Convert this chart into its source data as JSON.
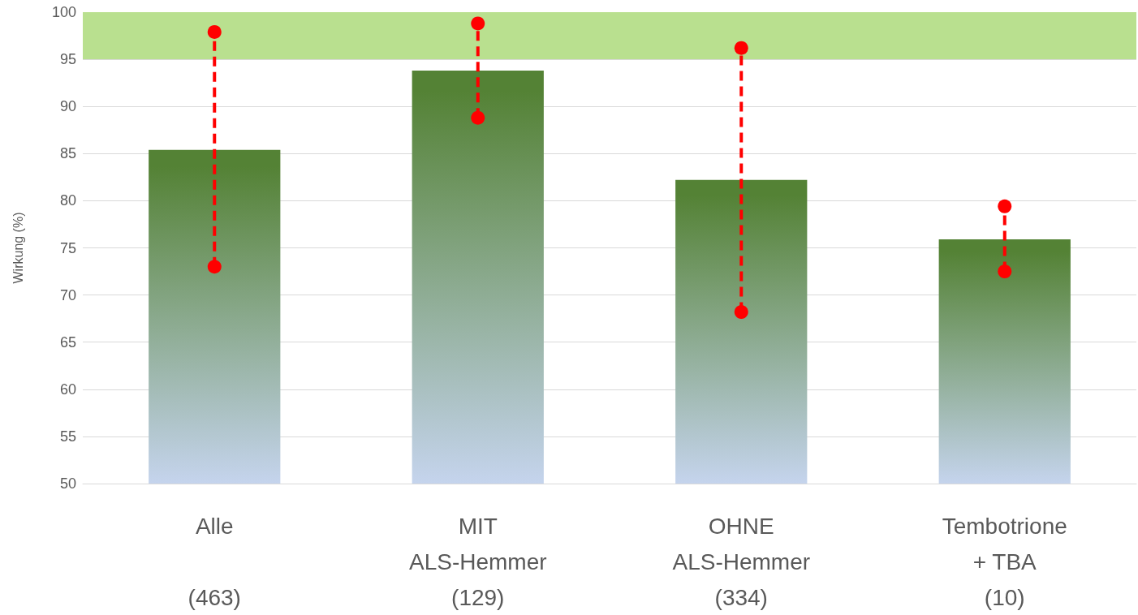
{
  "chart_data": {
    "type": "bar",
    "ylabel": "Wirkung (%)",
    "categories": [
      "Alle\n\n(463)",
      "MIT\nALS-Hemmer\n(129)",
      "OHNE\nALS-Hemmer\n(334)",
      "Tembotrione\n+ TBA\n(10)"
    ],
    "series": [
      {
        "color": "#548235",
        "values": [
          85.4,
          93.8,
          82.2,
          75.9
        ]
      },
      {
        "type": "line",
        "color": "#ff0000",
        "x": [
          "Alle\n\n(463)",
          "Alle\n\n(463)"
        ],
        "values": [
          73.0,
          97.9
        ],
        "marker": "circle",
        "line_style": "dashed"
      },
      {
        "type": "line",
        "color": "#ff0000",
        "x": [
          "MIT\nALS-Hemmer\n(129)",
          "MIT\nALS-Hemmer\n(129)"
        ],
        "values": [
          88.8,
          98.8
        ],
        "marker": "circle",
        "line_style": "dashed"
      },
      {
        "type": "line",
        "color": "#ff0000",
        "x": [
          "OHNE\nALS-Hemmer\n(334)",
          "OHNE\nALS-Hemmer\n(334)"
        ],
        "values": [
          68.2,
          96.2
        ],
        "marker": "circle",
        "line_style": "dashed"
      },
      {
        "type": "line",
        "color": "#ff0000",
        "x": [
          "Tembotrione\n+ TBA\n(10)",
          "Tembotrione\n+ TBA\n(10)"
        ],
        "values": [
          72.5,
          79.4
        ],
        "marker": "circle",
        "line_style": "dashed"
      }
    ],
    "ylim": [
      50,
      100
    ],
    "yticks": [
      50,
      55,
      60,
      65,
      70,
      75,
      80,
      85,
      90,
      95,
      100
    ],
    "grid": "y",
    "bands": [
      {
        "axis": "y",
        "from": 95,
        "to": 100,
        "color": "#b9e08f"
      }
    ]
  }
}
